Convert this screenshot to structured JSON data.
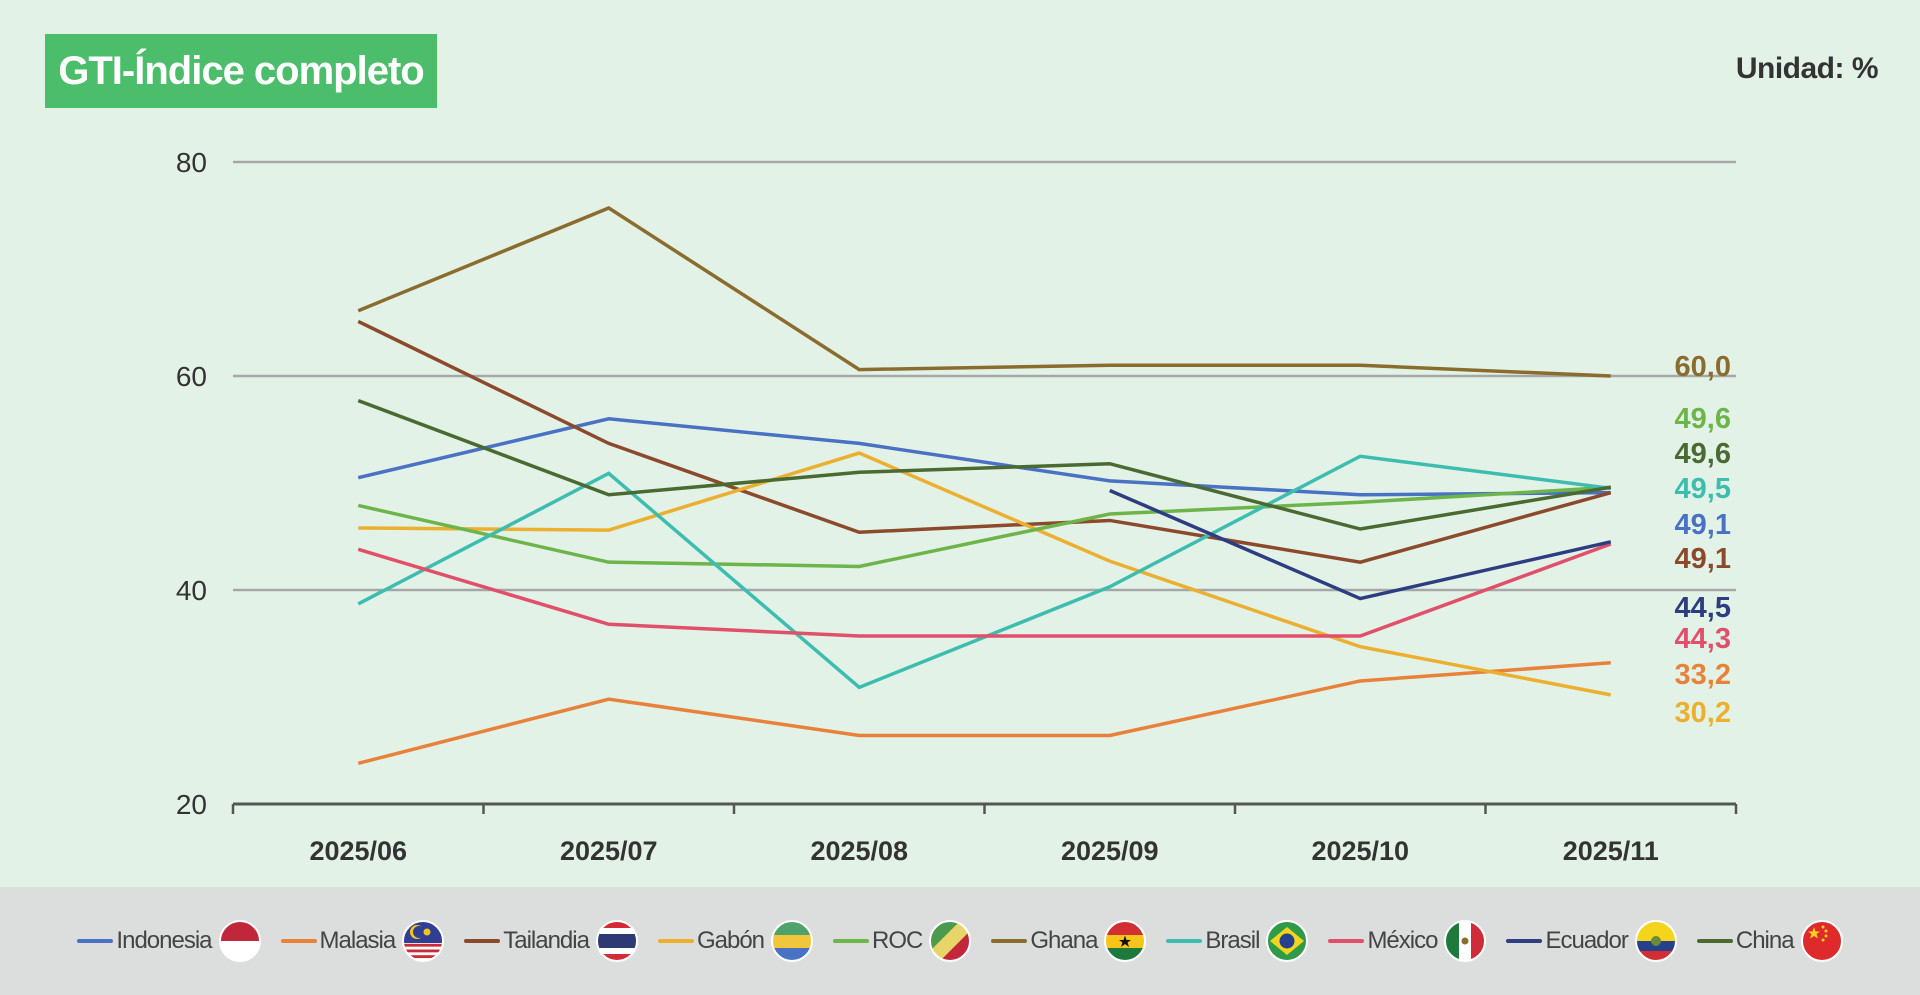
{
  "title": "GTI-Índice completo",
  "unit": "Unidad: %",
  "chart_data": {
    "type": "line",
    "title": "GTI-Índice completo",
    "xlabel": "",
    "ylabel": "",
    "ylim": [
      20,
      80
    ],
    "yticks": [
      "20",
      "40",
      "60",
      "80"
    ],
    "grid": true,
    "legend_position": "bottom",
    "categories": [
      "2025/06",
      "2025/07",
      "2025/08",
      "2025/09",
      "2025/10",
      "2025/11"
    ],
    "series": [
      {
        "name": "Indonesia",
        "key": "indonesia",
        "color": "#4a72c4",
        "values": [
          50.5,
          56.0,
          53.7,
          50.2,
          48.9,
          49.1
        ],
        "end_label": "49,1"
      },
      {
        "name": "Malasia",
        "key": "malasia",
        "color": "#e8823a",
        "values": [
          23.8,
          29.8,
          26.4,
          26.4,
          31.5,
          33.2
        ],
        "end_label": "33,2"
      },
      {
        "name": "Tailandia",
        "key": "tailandia",
        "color": "#8b4a2b",
        "values": [
          65.1,
          53.7,
          45.4,
          46.5,
          42.6,
          49.1
        ],
        "end_label": "49,1"
      },
      {
        "name": "Gabón",
        "key": "gabon",
        "color": "#ecb030",
        "values": [
          45.8,
          45.6,
          52.8,
          42.7,
          34.7,
          30.2
        ],
        "end_label": "30,2"
      },
      {
        "name": "ROC",
        "key": "roc",
        "color": "#6db54b",
        "values": [
          47.9,
          42.6,
          42.2,
          47.1,
          48.2,
          49.6
        ],
        "end_label": "49,6"
      },
      {
        "name": "Ghana",
        "key": "ghana",
        "color": "#8a6d2e",
        "values": [
          66.1,
          75.7,
          60.6,
          61.0,
          61.0,
          60.0
        ],
        "end_label": "60,0"
      },
      {
        "name": "Brasil",
        "key": "brasil",
        "color": "#3dbdb0",
        "values": [
          38.7,
          50.9,
          30.9,
          40.3,
          52.5,
          49.5
        ],
        "end_label": "49,5"
      },
      {
        "name": "México",
        "key": "mexico",
        "color": "#e0506a",
        "values": [
          43.8,
          36.8,
          35.7,
          35.7,
          35.7,
          44.3
        ],
        "end_label": "44,3"
      },
      {
        "name": "Ecuador",
        "key": "ecuador",
        "color": "#2c3e80",
        "values": [
          null,
          null,
          null,
          49.3,
          39.2,
          44.5
        ],
        "end_label": "44,5"
      },
      {
        "name": "China",
        "key": "china",
        "color": "#4a6a32",
        "values": [
          57.7,
          48.9,
          51.0,
          51.8,
          45.7,
          49.6
        ],
        "end_label": "49,6"
      }
    ],
    "end_label_order": [
      "ghana",
      "roc",
      "china",
      "brasil",
      "indonesia",
      "tailandia",
      "ecuador",
      "mexico",
      "malasia",
      "gabon"
    ]
  }
}
